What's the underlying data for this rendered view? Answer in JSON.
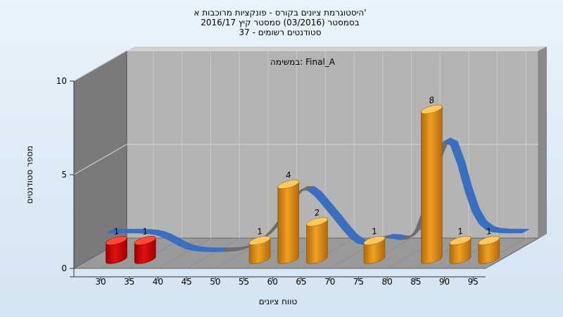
{
  "chart_data": {
    "type": "bar",
    "title_lines": [
      "היסטוגרמת ציונים בקורס - פונקציות מרוכבות א'",
      "בסמסטר  (03/2016)  סמסטר קיץ 2016/17",
      "סטודנטים רשומים - 37"
    ],
    "inner_label": "במשימה: Final_A",
    "xlabel": "טווח ציונים",
    "ylabel": "מספר סטודנטים",
    "ylim": [
      0,
      10
    ],
    "yticks": [
      0,
      5,
      10
    ],
    "categories": [
      "30",
      "35",
      "40",
      "45",
      "50",
      "55",
      "60",
      "65",
      "70",
      "75",
      "80",
      "85",
      "90",
      "95"
    ],
    "values": [
      1,
      1,
      0,
      0,
      0,
      1,
      4,
      2,
      0,
      1,
      0,
      8,
      1,
      1
    ],
    "failing_categories": [
      "30",
      "35"
    ],
    "grid": true,
    "colors": {
      "failing": "#e01010",
      "passing": "#f0a020",
      "curve_front": "#3a6fc0",
      "curve_back": "#6e6e6e",
      "back_wall": "#b4b4b4",
      "side_wall": "#7a7a7a",
      "floor": "#9a9a9a"
    }
  }
}
